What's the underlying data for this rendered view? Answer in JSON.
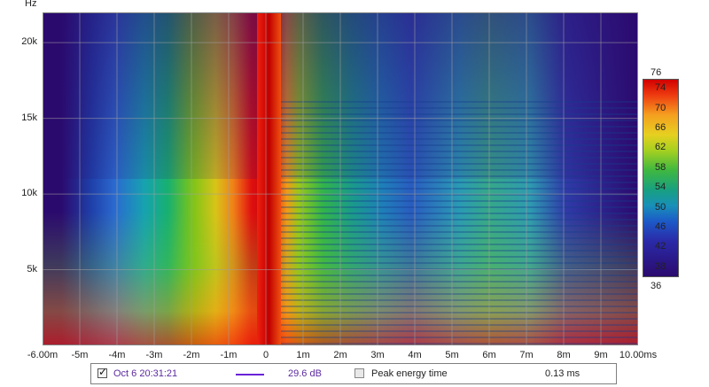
{
  "y_axis": {
    "unit": "Hz",
    "ticks": [
      "20k",
      "15k",
      "10k",
      "5k"
    ]
  },
  "x_axis": {
    "ticks": [
      "-6.00m",
      "-5m",
      "-4m",
      "-3m",
      "-2m",
      "-1m",
      "0",
      "1m",
      "2m",
      "3m",
      "4m",
      "5m",
      "6m",
      "7m",
      "8m",
      "9m",
      "10.00ms"
    ]
  },
  "colorbar": {
    "max": "76",
    "min": "36",
    "ticks": [
      "74",
      "70",
      "66",
      "62",
      "58",
      "54",
      "50",
      "46",
      "42",
      "38"
    ]
  },
  "legend": {
    "measurement_checked": true,
    "measurement_name": "Oct 6 20:31:21",
    "measurement_color": "#6a22d8",
    "measurement_value": "29.6 dB",
    "peak_label": "Peak energy time",
    "peak_checked": false,
    "peak_value": "0.13 ms"
  },
  "chart_data": {
    "type": "heatmap",
    "title": "",
    "xlabel": "",
    "ylabel": "Hz",
    "xlim": [
      -6.0,
      10.0
    ],
    "ylim": [
      0,
      22000
    ],
    "x_unit": "ms",
    "color_scale_db": [
      36,
      76
    ],
    "peak_time_ms": 0.13,
    "x_ticks_ms": [
      -6,
      -5,
      -4,
      -3,
      -2,
      -1,
      0,
      1,
      2,
      3,
      4,
      5,
      6,
      7,
      8,
      9,
      10
    ],
    "y_ticks_hz": [
      5000,
      10000,
      15000,
      20000
    ]
  }
}
